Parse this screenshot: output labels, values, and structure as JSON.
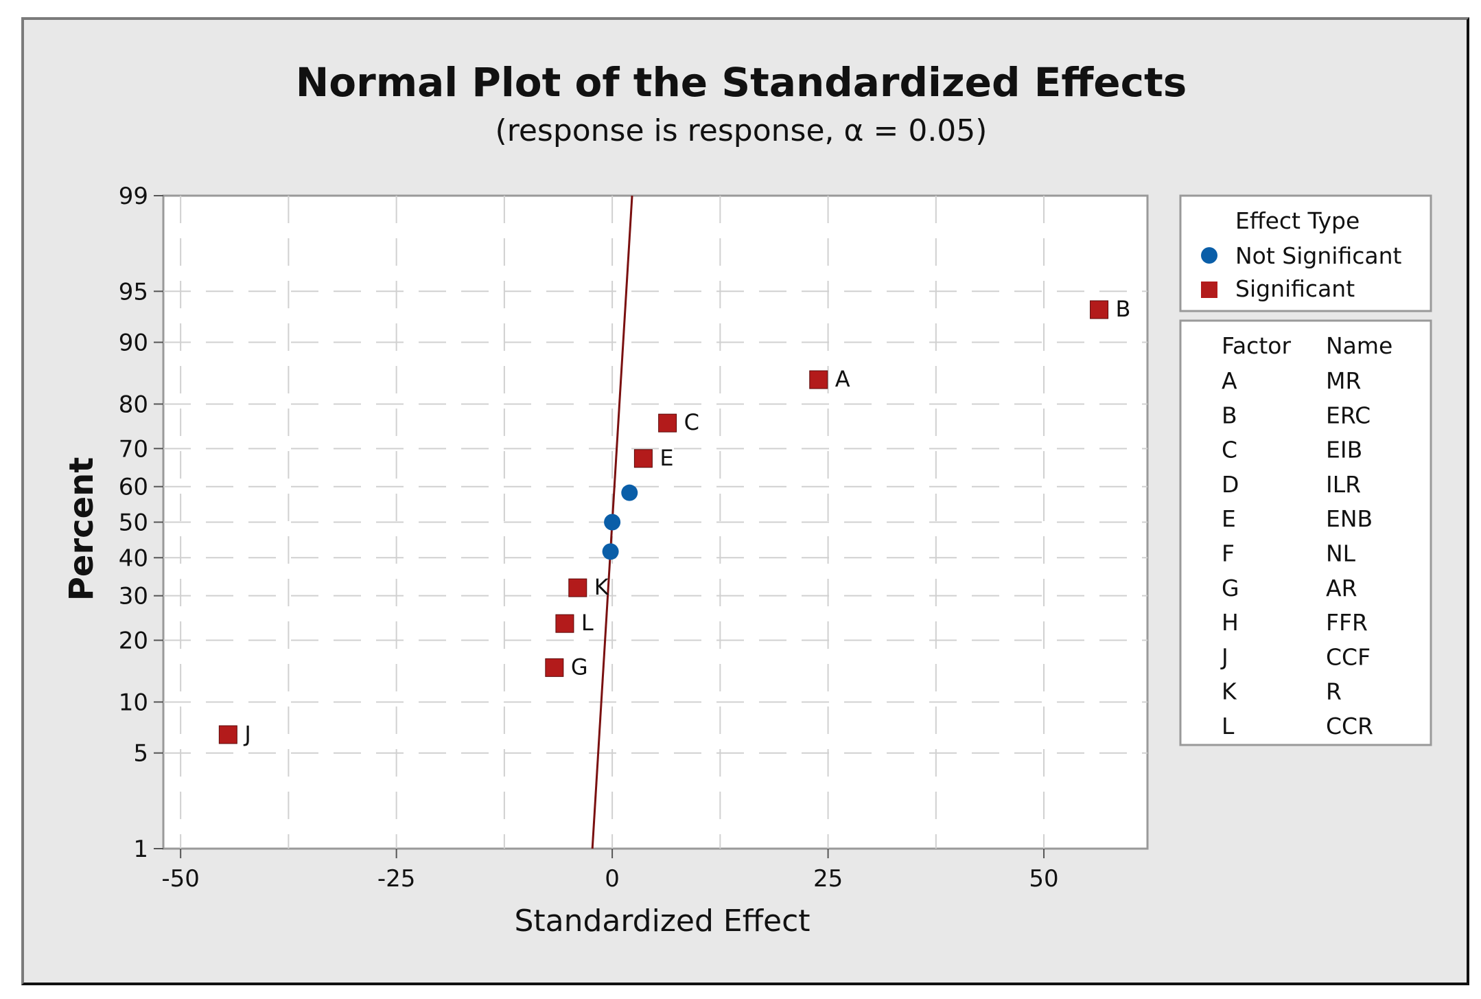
{
  "chart_data": {
    "type": "scatter",
    "title": "Normal Plot of the Standardized Effects",
    "subtitle": "(response is response, α = 0.05)",
    "xlabel": "Standardized Effect",
    "ylabel": "Percent",
    "xlim": [
      -52,
      62
    ],
    "ylim": [
      1,
      99
    ],
    "y_scale": "normal-probability",
    "grid": true,
    "x_ticks": [
      -50,
      -25,
      0,
      25,
      50
    ],
    "x_tick_labels": [
      "-50",
      "-25",
      "0",
      "25",
      "50"
    ],
    "y_ticks": [
      1,
      5,
      10,
      20,
      30,
      40,
      50,
      60,
      70,
      80,
      90,
      95,
      99
    ],
    "y_tick_labels": [
      "1",
      "5",
      "10",
      "20",
      "30",
      "40",
      "50",
      "60",
      "70",
      "80",
      "90",
      "95",
      "99"
    ],
    "reference_line": {
      "x_at_1": -2.3,
      "x_at_99": 2.3,
      "color": "#7a1010"
    },
    "series": [
      {
        "name": "Not Significant",
        "marker": "circle",
        "color": "#0a5ea8",
        "points": [
          {
            "x": -0.2,
            "y": 41.7
          },
          {
            "x": 0.0,
            "y": 50.0
          },
          {
            "x": 2.0,
            "y": 58.3
          }
        ]
      },
      {
        "name": "Significant",
        "marker": "square",
        "color": "#b31b1b",
        "points": [
          {
            "x": -44.5,
            "y": 6.5,
            "label": "J"
          },
          {
            "x": -6.7,
            "y": 15.0,
            "label": "G"
          },
          {
            "x": -5.5,
            "y": 23.5,
            "label": "L"
          },
          {
            "x": -4.0,
            "y": 32.0,
            "label": "K"
          },
          {
            "x": 3.6,
            "y": 67.5,
            "label": "E"
          },
          {
            "x": 6.4,
            "y": 76.0,
            "label": "C"
          },
          {
            "x": 23.9,
            "y": 84.5,
            "label": "A"
          },
          {
            "x": 56.4,
            "y": 93.5,
            "label": "B"
          }
        ]
      }
    ],
    "legend": {
      "title": "Effect Type",
      "entries": [
        "Not Significant",
        "Significant"
      ],
      "placement": "right"
    },
    "factor_table": {
      "headers": [
        "Factor",
        "Name"
      ],
      "rows": [
        [
          "A",
          "MR"
        ],
        [
          "B",
          "ERC"
        ],
        [
          "C",
          "EIB"
        ],
        [
          "D",
          "ILR"
        ],
        [
          "E",
          "ENB"
        ],
        [
          "F",
          "NL"
        ],
        [
          "G",
          "AR"
        ],
        [
          "H",
          "FFR"
        ],
        [
          "J",
          "CCF"
        ],
        [
          "K",
          "R"
        ],
        [
          "L",
          "CCR"
        ]
      ]
    }
  }
}
